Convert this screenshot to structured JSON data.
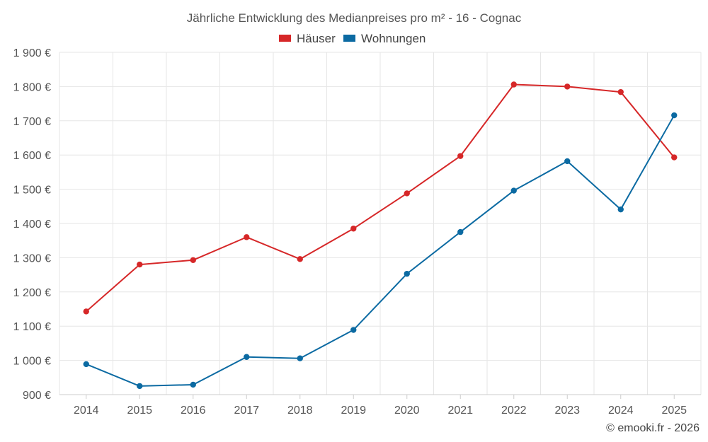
{
  "chart_data": {
    "type": "line",
    "title": "Jährliche Entwicklung des Medianpreises pro m² - 16 - Cognac",
    "categories": [
      "2014",
      "2015",
      "2016",
      "2017",
      "2018",
      "2019",
      "2020",
      "2021",
      "2022",
      "2023",
      "2024",
      "2025"
    ],
    "series": [
      {
        "name": "Häuser",
        "color": "#d62728",
        "values": [
          1143,
          1280,
          1293,
          1360,
          1296,
          1385,
          1488,
          1597,
          1806,
          1800,
          1784,
          1593
        ]
      },
      {
        "name": "Wohnungen",
        "color": "#0b6aa2",
        "values": [
          989,
          925,
          929,
          1010,
          1006,
          1089,
          1253,
          1375,
          1496,
          1582,
          1441,
          1716
        ]
      }
    ],
    "ylim": [
      900,
      1900
    ],
    "yticks": [
      900,
      1000,
      1100,
      1200,
      1300,
      1400,
      1500,
      1600,
      1700,
      1800,
      1900
    ],
    "ytick_labels": [
      "900 €",
      "1 000 €",
      "1 100 €",
      "1 200 €",
      "1 300 €",
      "1 400 €",
      "1 500 €",
      "1 600 €",
      "1 700 €",
      "1 800 €",
      "1 900 €"
    ],
    "xlabel": "",
    "ylabel": "",
    "grid": true,
    "legend_position": "top-center"
  },
  "credit": "© emooki.fr - 2026"
}
